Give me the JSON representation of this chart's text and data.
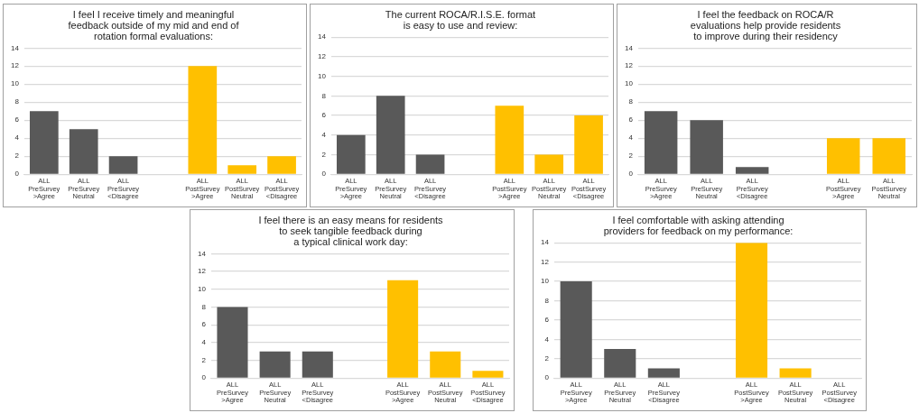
{
  "chart_data": [
    {
      "type": "bar",
      "title": "I feel I receive timely and meaningful\nfeedback outside of my mid and end of\nrotation formal evaluations:",
      "categories": [
        "ALL PreSurvey >Agree",
        "ALL PreSurvey Neutral",
        "ALL PreSurvey <Disagree",
        null,
        "ALL PostSurvey >Agree",
        "ALL PostSurvey Neutral",
        "ALL PostSurvey <Disagree"
      ],
      "values": [
        7,
        5,
        2,
        null,
        12,
        1,
        2
      ],
      "colors": [
        "#595959",
        "#595959",
        "#595959",
        "#595959",
        "#ffc000",
        "#ffc000",
        "#ffc000"
      ],
      "ylim": [
        0,
        14
      ],
      "yticks": [
        0,
        2,
        4,
        6,
        8,
        10,
        12,
        14
      ],
      "grid": "y"
    },
    {
      "type": "bar",
      "title": "The current ROCA/R.I.S.E. format\nis easy to use and review:",
      "categories": [
        "ALL PreSurvey >Agree",
        "ALL PreSurvey Neutral",
        "ALL PreSurvey <Disagree",
        null,
        "ALL PostSurvey >Agree",
        "ALL PostSurvey Neutral",
        "ALL PostSurvey <Disagree"
      ],
      "values": [
        4,
        8,
        2,
        null,
        7,
        2,
        6
      ],
      "colors": [
        "#595959",
        "#595959",
        "#595959",
        "#595959",
        "#ffc000",
        "#ffc000",
        "#ffc000"
      ],
      "ylim": [
        0,
        14
      ],
      "yticks": [
        0,
        2,
        4,
        6,
        8,
        10,
        12,
        14
      ],
      "grid": "y"
    },
    {
      "type": "bar",
      "title": "I feel the feedback on ROCA/R\nevaluations help provide residents\nto improve during their residency",
      "categories": [
        "ALL PreSurvey >Agree",
        "ALL PreSurvey Neutral",
        "ALL PreSurvey <Disagree",
        null,
        "ALL PostSurvey >Agree",
        "ALL PostSurvey Neutral"
      ],
      "values": [
        7,
        6,
        0.8,
        null,
        4,
        4
      ],
      "colors": [
        "#595959",
        "#595959",
        "#595959",
        "#595959",
        "#ffc000",
        "#ffc000"
      ],
      "ylim": [
        0,
        14
      ],
      "yticks": [
        0,
        2,
        4,
        6,
        8,
        10,
        12,
        14
      ],
      "grid": "y"
    },
    {
      "type": "bar",
      "title": "I feel there is an easy means for residents\nto seek tangible feedback during\na typical clinical work day:",
      "categories": [
        "ALL PreSurvey >Agree",
        "ALL PreSurvey Neutral",
        "ALL PreSurvey <Disagree",
        null,
        "ALL PostSurvey >Agree",
        "ALL PostSurvey Neutral",
        "ALL PostSurvey <Disagree"
      ],
      "values": [
        8,
        3,
        3,
        null,
        11,
        3,
        0.8
      ],
      "colors": [
        "#595959",
        "#595959",
        "#595959",
        "#595959",
        "#ffc000",
        "#ffc000",
        "#ffc000"
      ],
      "ylim": [
        0,
        14
      ],
      "yticks": [
        0,
        2,
        4,
        6,
        8,
        10,
        12,
        14
      ],
      "grid": "y"
    },
    {
      "type": "bar",
      "title": "I feel comfortable with asking attending\nproviders for feedback on my performance:",
      "categories": [
        "ALL PreSurvey >Agree",
        "ALL PreSurvey Neutral",
        "ALL PreSurvey <Disagree",
        null,
        "ALL PostSurvey >Agree",
        "ALL PostSurvey Neutral",
        "ALL PostSurvey <Disagree"
      ],
      "values": [
        10,
        3,
        1,
        null,
        14,
        1,
        0
      ],
      "colors": [
        "#595959",
        "#595959",
        "#595959",
        "#595959",
        "#ffc000",
        "#ffc000",
        "#ffc000"
      ],
      "ylim": [
        0,
        14
      ],
      "yticks": [
        0,
        2,
        4,
        6,
        8,
        10,
        12,
        14
      ],
      "grid": "y"
    }
  ]
}
